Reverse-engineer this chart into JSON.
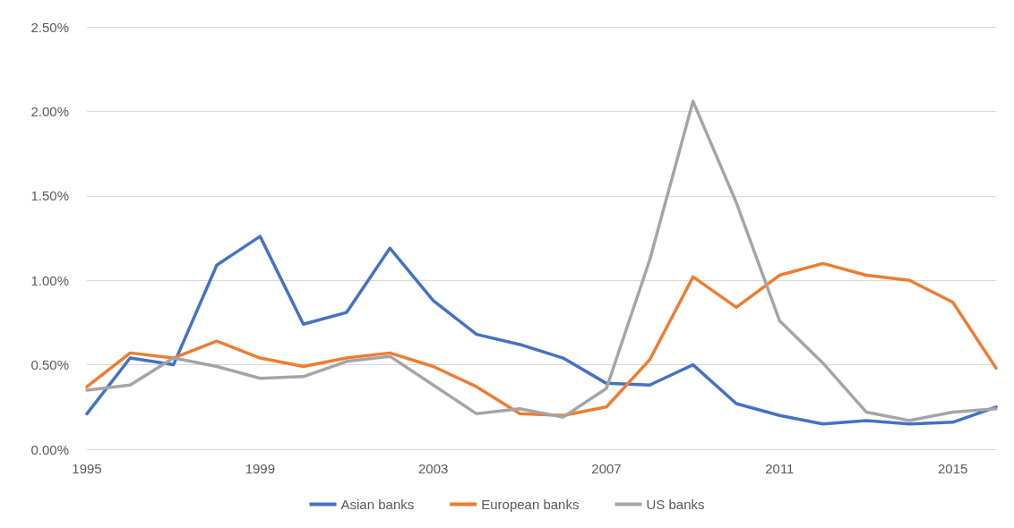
{
  "chart_data": {
    "type": "line",
    "categories": [
      "1995",
      null,
      null,
      null,
      "1999",
      null,
      null,
      null,
      "2003",
      null,
      null,
      null,
      "2007",
      null,
      null,
      null,
      "2011",
      null,
      null,
      null,
      "2015",
      null
    ],
    "series": [
      {
        "name": "Asian banks",
        "color": "#4472c4",
        "values": [
          0.21,
          0.54,
          0.5,
          1.09,
          1.26,
          0.74,
          0.81,
          1.19,
          0.88,
          0.68,
          0.62,
          0.54,
          0.39,
          0.38,
          0.5,
          0.27,
          0.2,
          0.15,
          0.17,
          0.15,
          0.16,
          0.25
        ]
      },
      {
        "name": "European banks",
        "color": "#ed7d31",
        "values": [
          0.37,
          0.57,
          0.54,
          0.64,
          0.54,
          0.49,
          0.54,
          0.57,
          0.49,
          0.37,
          0.21,
          0.2,
          0.25,
          0.53,
          1.02,
          0.84,
          1.03,
          1.1,
          1.03,
          1.0,
          0.87,
          0.48
        ]
      },
      {
        "name": "US banks",
        "color": "#a5a5a5",
        "values": [
          0.35,
          0.38,
          0.54,
          0.49,
          0.42,
          0.43,
          0.52,
          0.55,
          0.38,
          0.21,
          0.24,
          0.19,
          0.36,
          1.12,
          2.06,
          1.46,
          0.76,
          0.51,
          0.22,
          0.17,
          0.22,
          0.24
        ]
      }
    ],
    "ylim": [
      0,
      2.5
    ],
    "yticks": [
      {
        "value": 0,
        "label": "0.00%"
      },
      {
        "value": 0.5,
        "label": "0.50%"
      },
      {
        "value": 1,
        "label": "1.00%"
      },
      {
        "value": 1.5,
        "label": "1.50%"
      },
      {
        "value": 2,
        "label": "2.00%"
      },
      {
        "value": 2.5,
        "label": "2.50%"
      }
    ],
    "grid": "y",
    "legend": "bottom",
    "marker": "none",
    "line_style": "solid"
  }
}
